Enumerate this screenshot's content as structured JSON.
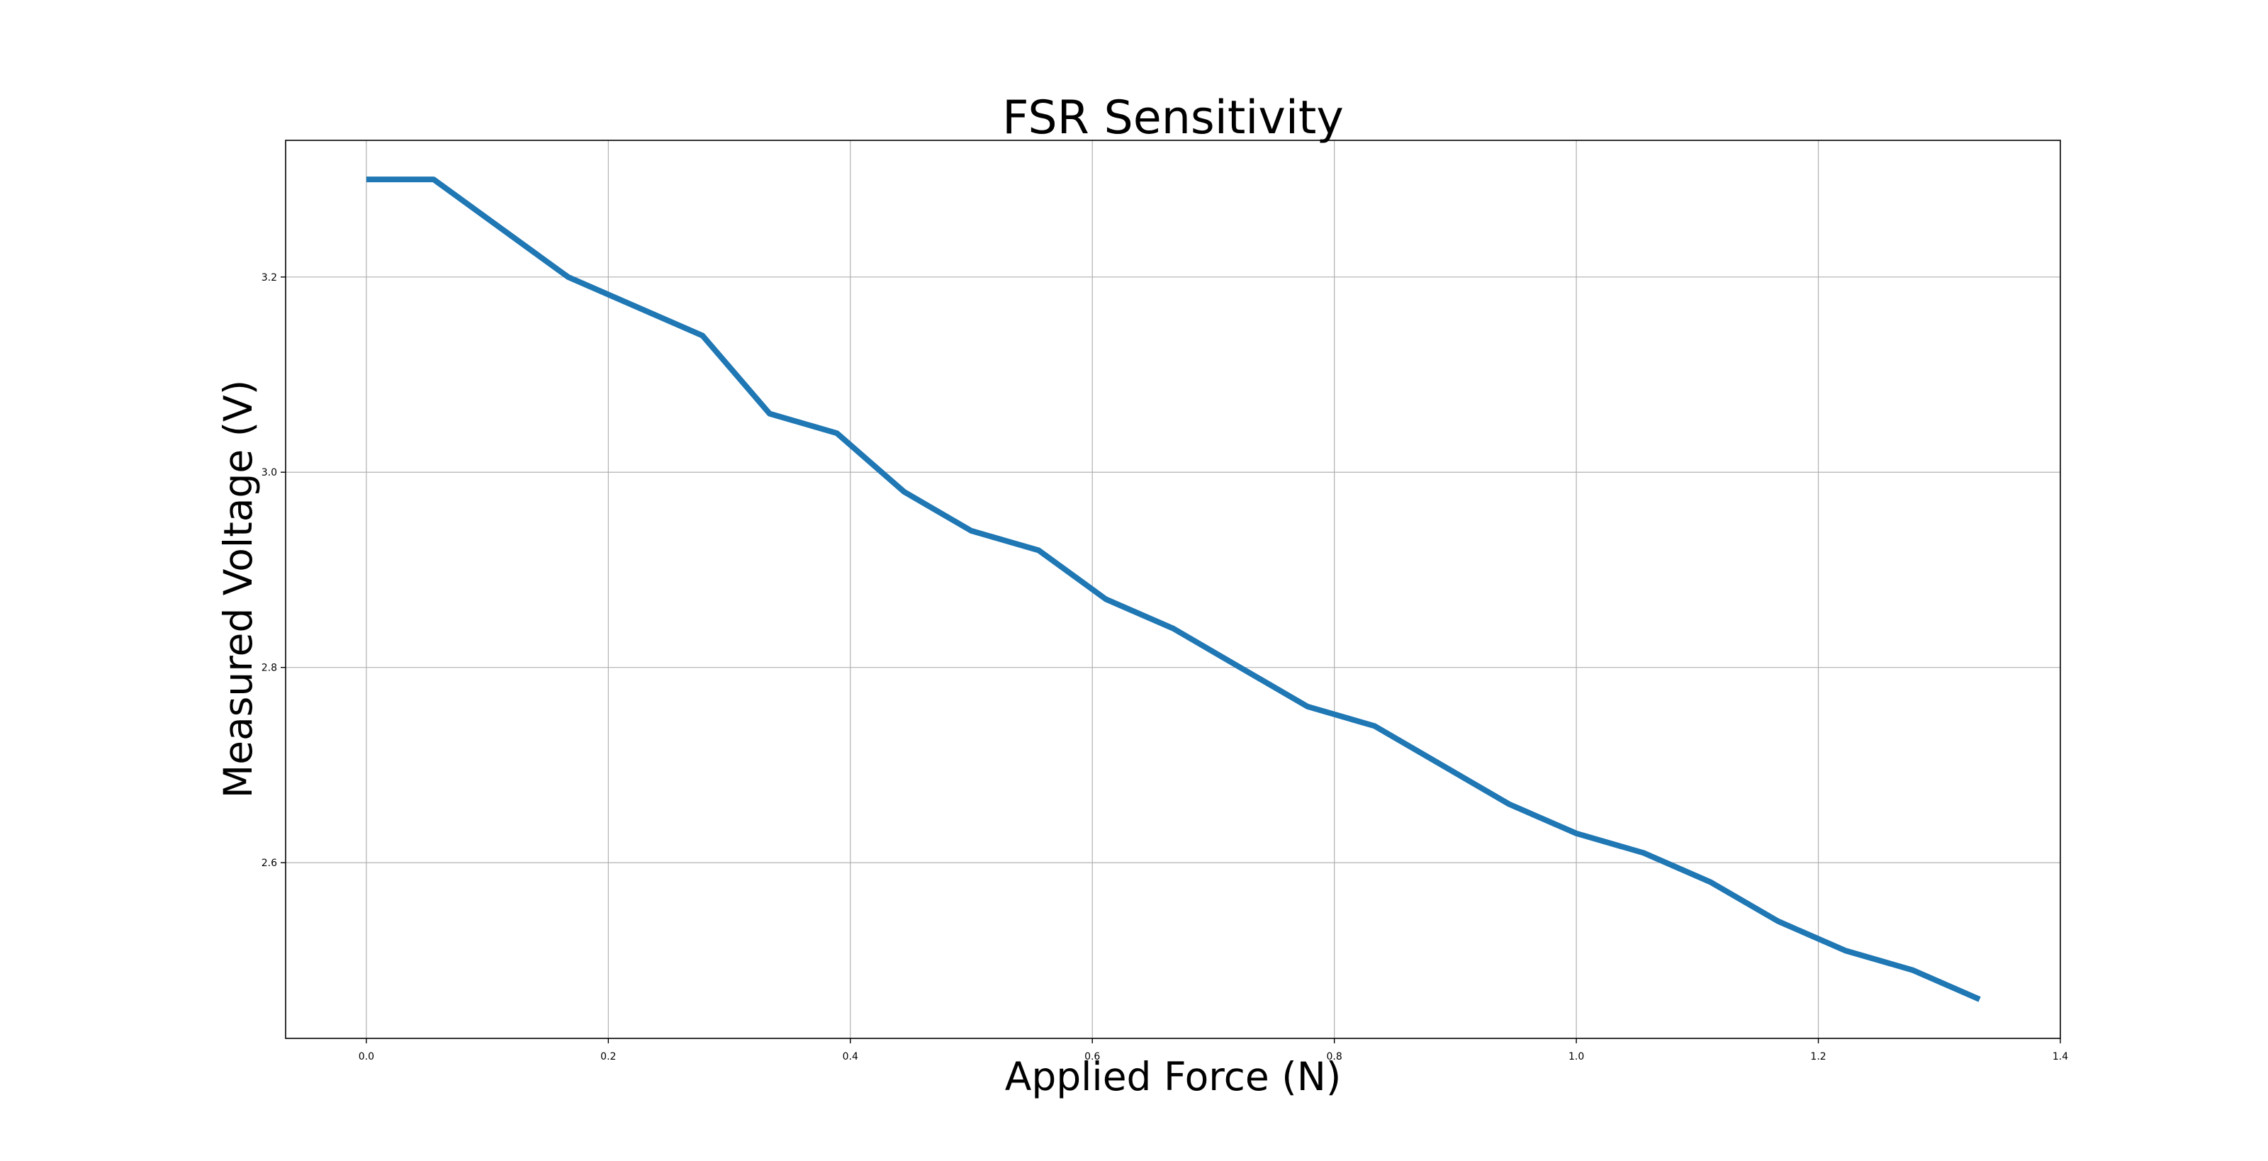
{
  "chart_data": {
    "type": "line",
    "title": "FSR Sensitivity",
    "xlabel": "Applied Force (N)",
    "ylabel": "Measured Voltage (V)",
    "xlim": [
      -0.0667,
      1.4
    ],
    "ylim": [
      2.42,
      3.34
    ],
    "xticks": [
      0.0,
      0.2,
      0.4,
      0.6,
      0.8,
      1.0,
      1.2,
      1.4
    ],
    "xtick_labels": [
      "0.0",
      "0.2",
      "0.4",
      "0.6",
      "0.8",
      "1.0",
      "1.2",
      "1.4"
    ],
    "yticks": [
      2.6,
      2.8,
      3.0,
      3.2
    ],
    "ytick_labels": [
      "2.6",
      "2.8",
      "3.0",
      "3.2"
    ],
    "grid": true,
    "legend": null,
    "series": [
      {
        "color": "#1f77b4",
        "x": [
          0.0,
          0.0556,
          0.1111,
          0.1667,
          0.2222,
          0.2778,
          0.3333,
          0.3889,
          0.4444,
          0.5,
          0.5556,
          0.6111,
          0.6667,
          0.7222,
          0.7778,
          0.8333,
          0.8889,
          0.9444,
          1.0,
          1.0556,
          1.1111,
          1.1667,
          1.2222,
          1.2778,
          1.3333
        ],
        "y": [
          3.3,
          3.3,
          3.25,
          3.2,
          3.17,
          3.14,
          3.06,
          3.04,
          2.98,
          2.94,
          2.92,
          2.87,
          2.84,
          2.8,
          2.76,
          2.74,
          2.7,
          2.66,
          2.63,
          2.61,
          2.58,
          2.54,
          2.51,
          2.49,
          2.46
        ]
      }
    ]
  }
}
